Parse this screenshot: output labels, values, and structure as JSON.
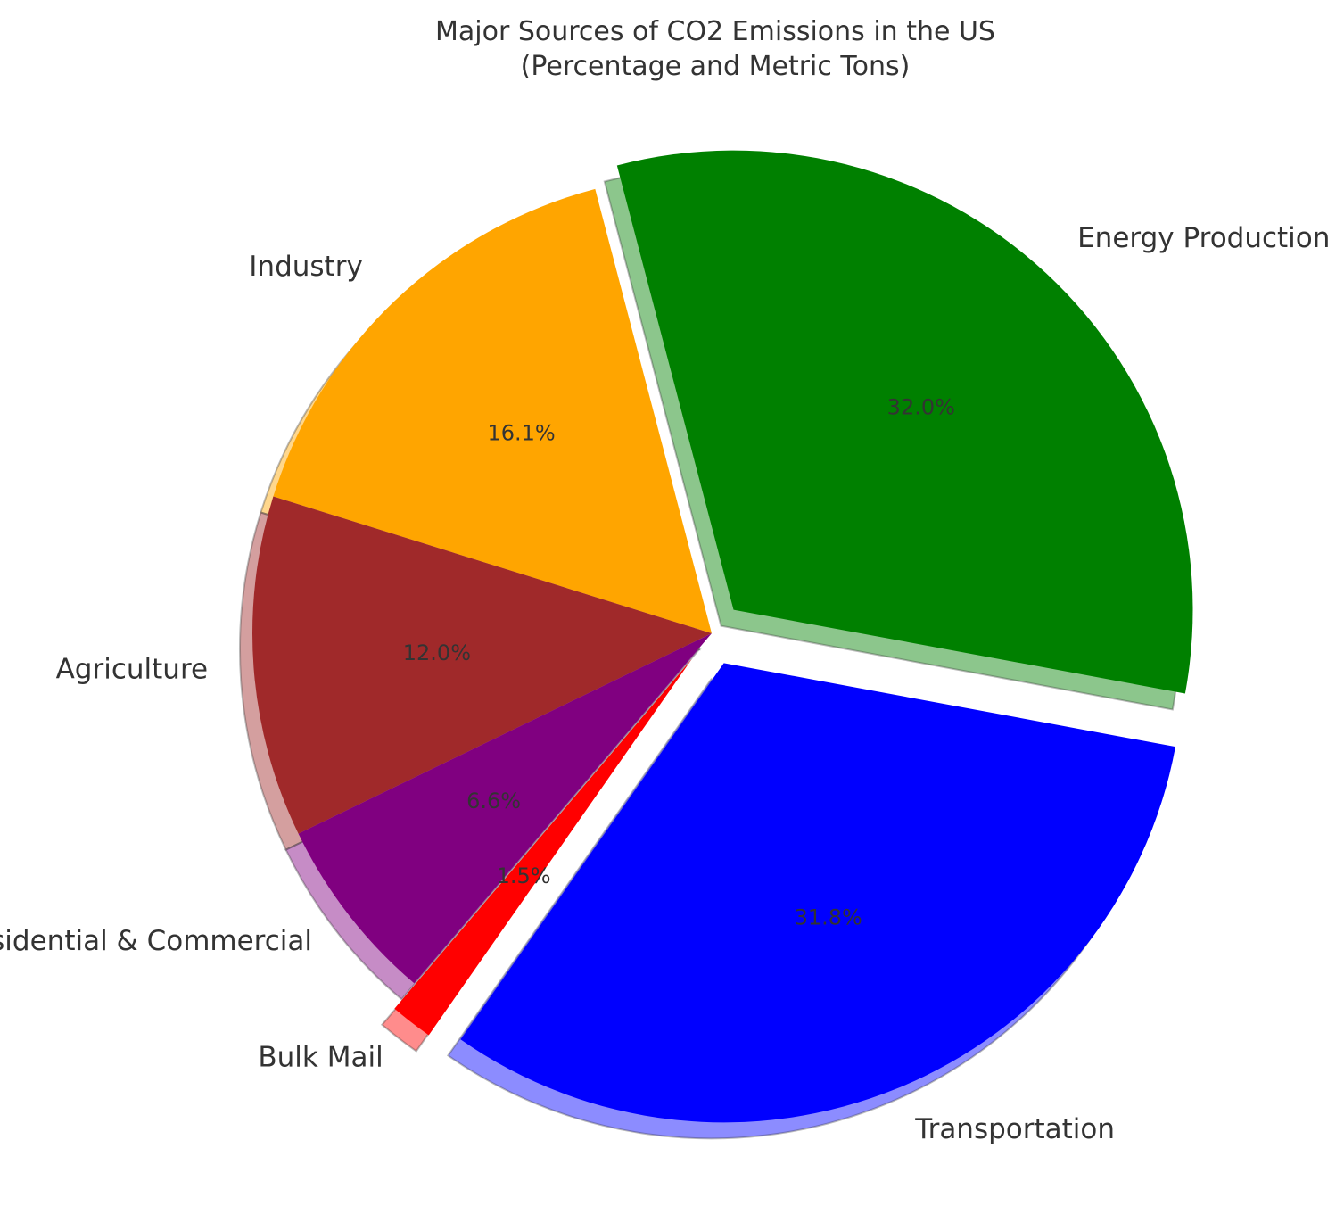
{
  "chart_data": {
    "type": "pie",
    "title_lines": [
      "Major Sources of CO2 Emissions in the US",
      "(Percentage and Metric Tons)"
    ],
    "slices": [
      {
        "label": "Energy Production",
        "percent": 32.0,
        "percent_label": "32.0%",
        "color": "#008000",
        "explode": true
      },
      {
        "label": "Industry",
        "percent": 16.1,
        "percent_label": "16.1%",
        "color": "#FFA500",
        "explode": false
      },
      {
        "label": "Agriculture",
        "percent": 12.0,
        "percent_label": "12.0%",
        "color": "#A0292A",
        "explode": false
      },
      {
        "label": "Residential & Commercial",
        "percent": 6.6,
        "percent_label": "6.6%",
        "color": "#800080",
        "explode": false
      },
      {
        "label": "Bulk Mail",
        "percent": 1.5,
        "percent_label": "1.5%",
        "color": "#FF0000",
        "explode": true
      },
      {
        "label": "Transportation",
        "percent": 31.8,
        "percent_label": "31.8%",
        "color": "#0000FF",
        "explode": true
      }
    ],
    "shadow": true,
    "legend": "none"
  }
}
